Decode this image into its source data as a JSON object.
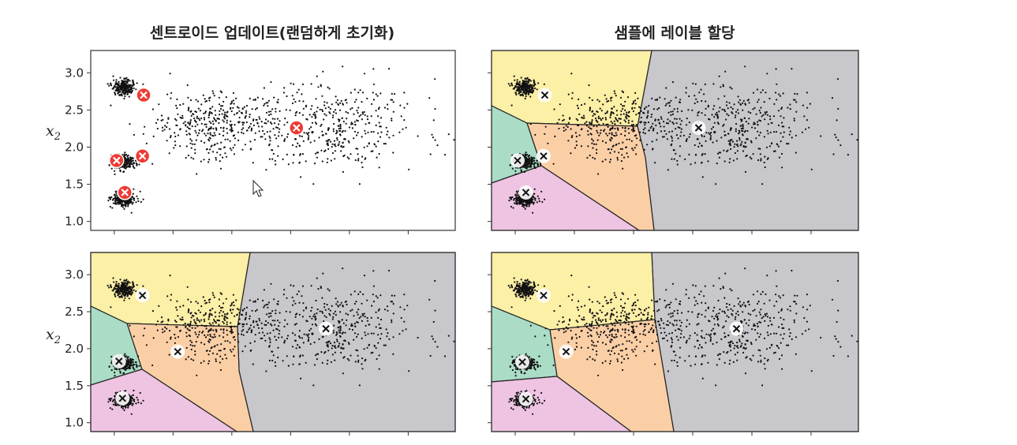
{
  "chart_data": [
    {
      "type": "scatter",
      "title": "센트로이드 업데이트(랜덤하게 초기화)",
      "ylabel": "x",
      "ylabel_sub": "2",
      "yticks": [
        "3.0",
        "2.5",
        "2.0",
        "1.5",
        "1.0"
      ],
      "ylim": [
        0.88,
        3.3
      ],
      "xlim": [
        -0.2,
        2.9
      ],
      "has_regions": false,
      "centroid_style": "red",
      "centroids": [
        [
          0.25,
          2.7
        ],
        [
          0.02,
          1.82
        ],
        [
          0.24,
          1.88
        ],
        [
          0.09,
          1.39
        ],
        [
          1.55,
          2.26
        ]
      ]
    },
    {
      "type": "scatter",
      "title": "샘플에 레이블 할당",
      "ylabel": "",
      "yticks": [],
      "ylim": [
        0.88,
        3.3
      ],
      "xlim": [
        -0.2,
        2.9
      ],
      "has_regions": true,
      "centroid_style": "white",
      "centroids": [
        [
          0.25,
          2.7
        ],
        [
          0.02,
          1.82
        ],
        [
          0.24,
          1.88
        ],
        [
          0.09,
          1.39
        ],
        [
          1.55,
          2.26
        ]
      ]
    },
    {
      "type": "scatter",
      "title": "",
      "ylabel": "x",
      "ylabel_sub": "2",
      "yticks": [
        "3.0",
        "2.5",
        "2.0",
        "1.5",
        "1.0"
      ],
      "ylim": [
        0.88,
        3.3
      ],
      "xlim": [
        -0.2,
        2.9
      ],
      "has_regions": true,
      "centroid_style": "white",
      "centroids": [
        [
          0.24,
          2.72
        ],
        [
          0.04,
          1.83
        ],
        [
          0.54,
          1.96
        ],
        [
          0.07,
          1.33
        ],
        [
          1.8,
          2.27
        ]
      ]
    },
    {
      "type": "scatter",
      "title": "",
      "ylabel": "",
      "yticks": [],
      "ylim": [
        0.88,
        3.3
      ],
      "xlim": [
        -0.2,
        2.9
      ],
      "has_regions": true,
      "centroid_style": "white",
      "centroids": [
        [
          0.24,
          2.72
        ],
        [
          0.06,
          1.82
        ],
        [
          0.43,
          1.96
        ],
        [
          0.09,
          1.32
        ],
        [
          1.87,
          2.27
        ]
      ]
    }
  ],
  "colors": {
    "region_yellow": "#fcefa6",
    "region_orange": "#fbcfa6",
    "region_green": "#aadcc6",
    "region_pink": "#eec4e2",
    "region_gray": "#c8c7cb",
    "centroid_red": "#ee3a34",
    "points": "#111111"
  }
}
